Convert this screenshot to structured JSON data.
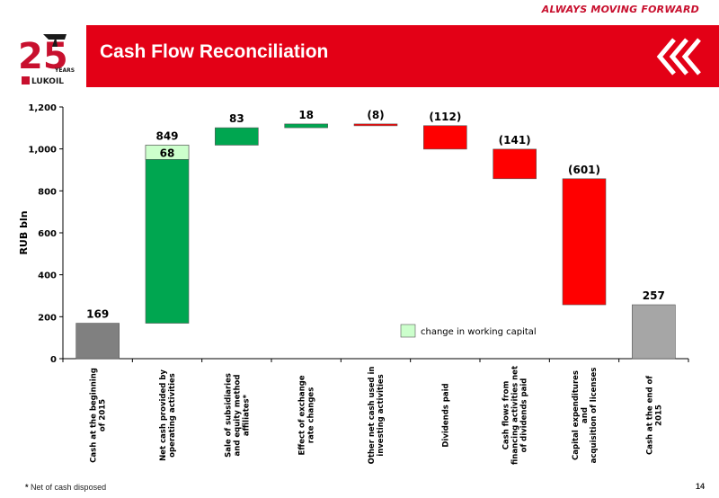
{
  "header": {
    "tagline": "ALWAYS MOVING FORWARD",
    "title": "Cash Flow Reconciliation",
    "logo_text": "LUKOIL",
    "logo_years": "25",
    "logo_years_label": "YEARS",
    "brand_color": "#e30016"
  },
  "footer": {
    "footnote_marker": "*",
    "footnote_text": "Net of cash disposed",
    "page_number": "14"
  },
  "chart_data": {
    "type": "bar",
    "subtype": "waterfall",
    "ylabel": "RUB bln",
    "ylim": [
      0,
      1200
    ],
    "yticks": [
      "0",
      "200",
      "400",
      "600",
      "800",
      "1,000",
      "1,200"
    ],
    "categories": [
      [
        "Cash at the beginning",
        "of 2015"
      ],
      [
        "Net cash provided by",
        "operating activities"
      ],
      [
        "Sale of subsidiaries",
        "and equity method",
        "affiliates*"
      ],
      [
        "Effect of exchange",
        "rate changes"
      ],
      [
        "Other net cash used in",
        "investing activities"
      ],
      [
        "Dividends paid"
      ],
      [
        "Cash flows from",
        "financing activities net",
        "of dividends paid"
      ],
      [
        "Capital expenditures",
        "and",
        "acquisition of licenses"
      ],
      [
        "Cash at the end of",
        "2015"
      ]
    ],
    "bars": [
      {
        "start": 0,
        "end": 169,
        "label": "169",
        "kind": "total",
        "color": "#808080"
      },
      {
        "start": 169,
        "end": 1018,
        "label": "849",
        "kind": "increase",
        "color": "#00a650",
        "sub_value": 68,
        "sub_label": "68",
        "sub_color": "#ccffcc"
      },
      {
        "start": 1018,
        "end": 1101,
        "label": "83",
        "kind": "increase",
        "color": "#00a650"
      },
      {
        "start": 1101,
        "end": 1119,
        "label": "18",
        "kind": "increase",
        "color": "#00a650"
      },
      {
        "start": 1119,
        "end": 1111,
        "label": "(8)",
        "kind": "decrease",
        "color": "#ff0000"
      },
      {
        "start": 1111,
        "end": 999,
        "label": "(112)",
        "kind": "decrease",
        "color": "#ff0000"
      },
      {
        "start": 999,
        "end": 858,
        "label": "(141)",
        "kind": "decrease",
        "color": "#ff0000"
      },
      {
        "start": 858,
        "end": 257,
        "label": "(601)",
        "kind": "decrease",
        "color": "#ff0000"
      },
      {
        "start": 0,
        "end": 257,
        "label": "257",
        "kind": "total",
        "color": "#a6a6a6"
      }
    ],
    "legend": {
      "label": "change in working capital",
      "color": "#ccffcc",
      "position": "center-right"
    }
  }
}
